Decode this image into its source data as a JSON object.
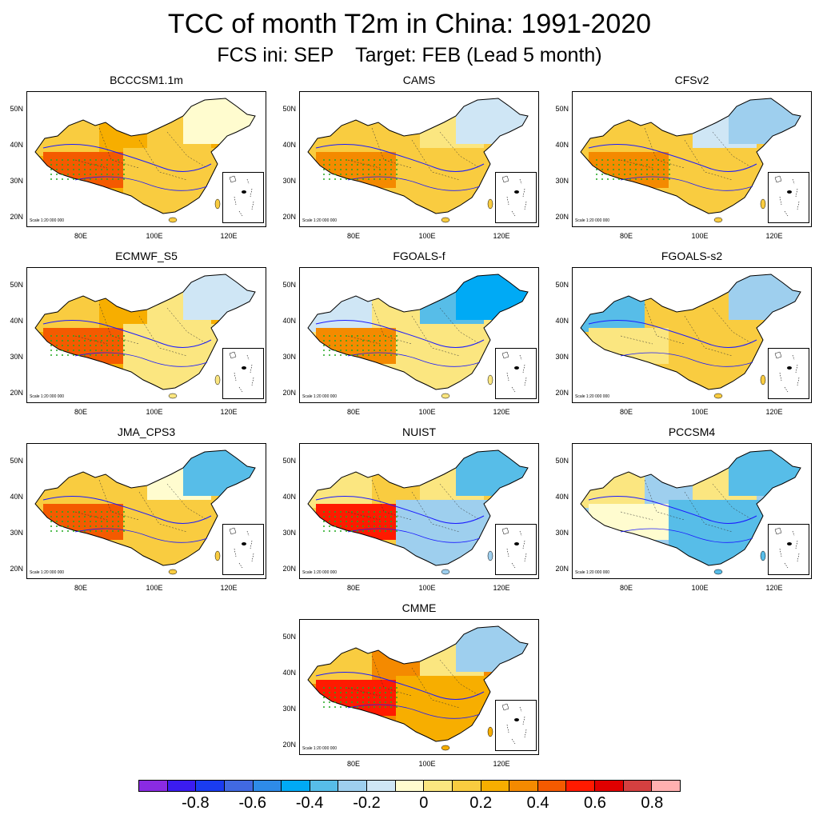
{
  "title": "TCC of month T2m in China: 1991-2020",
  "subtitle": "FCS ini: SEP    Target: FEB (Lead 5 month)",
  "y_ticks": [
    "50N",
    "40N",
    "30N",
    "20N"
  ],
  "x_ticks": [
    "80E",
    "100E",
    "120E"
  ],
  "scale_text": "Scale 1:20 000 000",
  "panels": [
    {
      "name": "BCCCSM1.1m",
      "pattern": [
        0.2,
        0.35,
        0.3,
        0.55,
        0.25,
        0.0
      ]
    },
    {
      "name": "CAMS",
      "pattern": [
        0.15,
        0.3,
        0.2,
        0.4,
        0.2,
        -0.1
      ]
    },
    {
      "name": "CFSv2",
      "pattern": [
        -0.1,
        0.3,
        0.2,
        0.4,
        0.3,
        -0.15
      ]
    },
    {
      "name": "ECMWF_S5",
      "pattern": [
        0.1,
        0.35,
        0.2,
        0.55,
        0.15,
        -0.1
      ]
    },
    {
      "name": "FGOALS-f",
      "pattern": [
        -0.2,
        0.1,
        -0.1,
        0.45,
        0.1,
        -0.4
      ]
    },
    {
      "name": "FGOALS-s2",
      "pattern": [
        0.25,
        0.2,
        -0.2,
        0.1,
        0.2,
        -0.15
      ]
    },
    {
      "name": "JMA_CPS3",
      "pattern": [
        0.05,
        0.3,
        0.2,
        0.55,
        0.25,
        -0.2
      ]
    },
    {
      "name": "NUIST",
      "pattern": [
        0.1,
        0.2,
        0.15,
        0.6,
        -0.15,
        -0.2
      ]
    },
    {
      "name": "PCCSM4",
      "pattern": [
        0.1,
        -0.15,
        0.1,
        0.0,
        -0.2,
        -0.2
      ]
    },
    {
      "name": "CMME",
      "pattern": [
        0.15,
        0.4,
        0.3,
        0.6,
        0.35,
        -0.15
      ]
    }
  ],
  "colorbar": {
    "colors": [
      "#8a2be2",
      "#3b1cf0",
      "#1a3cf0",
      "#4169e1",
      "#2e8be8",
      "#00aaf5",
      "#57bde8",
      "#9ecfee",
      "#cfe6f5",
      "#fffccf",
      "#fbe680",
      "#f9cc40",
      "#f7ae00",
      "#f48a00",
      "#f45a00",
      "#ff1a00",
      "#e00000",
      "#d44040",
      "#ffb0b0"
    ],
    "labels": [
      "-0.8",
      "-0.6",
      "-0.4",
      "-0.2",
      "0",
      "0.2",
      "0.4",
      "0.6",
      "0.8"
    ]
  }
}
